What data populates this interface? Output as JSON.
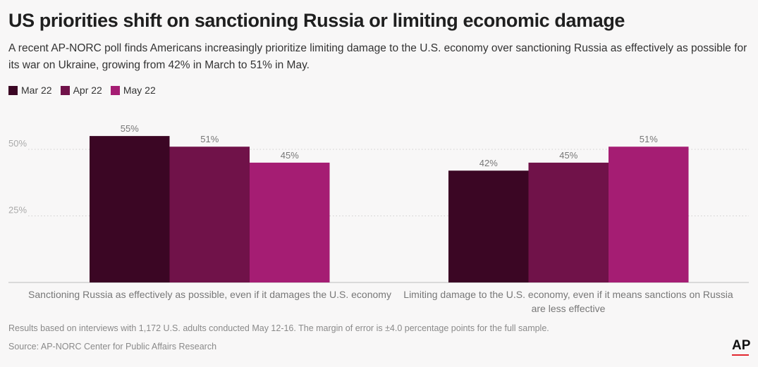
{
  "title": "US priorities shift on sanctioning Russia or limiting economic damage",
  "subtitle": "A recent AP-NORC poll finds Americans increasingly prioritize limiting damage to the U.S. economy over sanctioning Russia as effectively as possible for its war on Ukraine, growing from 42% in March to 51% in May.",
  "footnote": "Results based on interviews with 1,172 U.S. adults conducted May 12-16. The margin of error is ±4.0 percentage points for the full sample.",
  "source": "Source: AP-NORC Center for Public Affairs Research",
  "logo": "AP",
  "colors": {
    "mar": "#3b0624",
    "apr": "#701249",
    "may": "#a51d73",
    "accent": "#e2272f"
  },
  "chart_data": {
    "type": "bar",
    "categories": [
      "Sanctioning Russia as effectively as possible, even if it damages the U.S. economy",
      "Limiting damage to the U.S. economy, even if it means sanctions on Russia are less effective"
    ],
    "series": [
      {
        "name": "Mar 22",
        "values": [
          55,
          42
        ],
        "labels": [
          "55%",
          "42%"
        ]
      },
      {
        "name": "Apr 22",
        "values": [
          51,
          45
        ],
        "labels": [
          "51%",
          "45%"
        ]
      },
      {
        "name": "May 22",
        "values": [
          45,
          51
        ],
        "labels": [
          "45%",
          "51%"
        ]
      }
    ],
    "yticks": [
      25,
      50
    ],
    "ytick_labels": [
      "25%",
      "50%"
    ],
    "ylim": [
      0,
      60
    ],
    "grid": true,
    "legend": "top-left"
  }
}
